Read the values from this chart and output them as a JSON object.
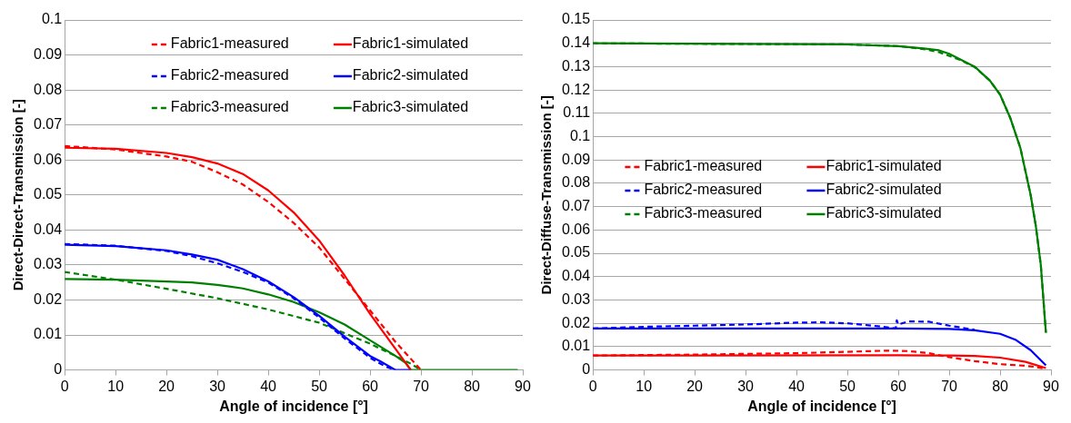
{
  "chart_data": [
    {
      "type": "line",
      "xlabel": "Angle of incidence [°]",
      "ylabel": "Direct-Direct-Transmission [-]",
      "xlim": [
        0,
        90
      ],
      "xticks": [
        0,
        10,
        20,
        30,
        40,
        50,
        60,
        70,
        80,
        90
      ],
      "ylim": [
        0,
        0.1
      ],
      "yticks": [
        0,
        0.01,
        0.02,
        0.03,
        0.04,
        0.05,
        0.06,
        0.07,
        0.08,
        0.09,
        0.1
      ],
      "grid": "y",
      "legend": "top",
      "marker": "none",
      "series": [
        {
          "name": "Fabric1-measured",
          "color": "#ff0000",
          "line_style": "dashed",
          "x": [
            0,
            10,
            20,
            25,
            30,
            35,
            40,
            45,
            50,
            55,
            60,
            65,
            70
          ],
          "values": [
            0.064,
            0.063,
            0.061,
            0.0595,
            0.0565,
            0.053,
            0.048,
            0.042,
            0.035,
            0.026,
            0.017,
            0.008,
            0
          ]
        },
        {
          "name": "Fabric1-simulated",
          "color": "#ff0000",
          "line_style": "solid",
          "x": [
            0,
            10,
            20,
            25,
            30,
            35,
            40,
            45,
            50,
            55,
            60,
            65,
            68
          ],
          "values": [
            0.0635,
            0.0632,
            0.062,
            0.0608,
            0.059,
            0.056,
            0.0513,
            0.045,
            0.037,
            0.027,
            0.016,
            0.006,
            0
          ]
        },
        {
          "name": "Fabric2-measured",
          "color": "#0000ff",
          "line_style": "dashed",
          "x": [
            0,
            10,
            20,
            25,
            30,
            35,
            40,
            45,
            50,
            55,
            60,
            63,
            65
          ],
          "values": [
            0.036,
            0.0355,
            0.034,
            0.0325,
            0.0305,
            0.028,
            0.025,
            0.0205,
            0.015,
            0.009,
            0.0035,
            0.001,
            0
          ]
        },
        {
          "name": "Fabric2-simulated",
          "color": "#0000ff",
          "line_style": "solid",
          "x": [
            0,
            10,
            20,
            25,
            30,
            35,
            40,
            45,
            50,
            55,
            60,
            62,
            65,
            68
          ],
          "values": [
            0.0358,
            0.0354,
            0.0342,
            0.033,
            0.0315,
            0.0288,
            0.0253,
            0.0208,
            0.0155,
            0.0095,
            0.004,
            0.0025,
            0,
            0
          ]
        },
        {
          "name": "Fabric3-measured",
          "color": "#008000",
          "line_style": "dashed",
          "x": [
            0,
            10,
            20,
            30,
            40,
            50,
            55,
            60,
            65,
            68,
            70
          ],
          "values": [
            0.028,
            0.0258,
            0.0232,
            0.0205,
            0.0173,
            0.0135,
            0.0105,
            0.0075,
            0.004,
            0.0018,
            0
          ]
        },
        {
          "name": "Fabric3-simulated",
          "color": "#008000",
          "line_style": "solid",
          "x": [
            0,
            10,
            20,
            25,
            30,
            35,
            40,
            45,
            50,
            55,
            60,
            65,
            67,
            68,
            89
          ],
          "values": [
            0.026,
            0.0258,
            0.0253,
            0.025,
            0.0243,
            0.0233,
            0.0216,
            0.0194,
            0.0165,
            0.013,
            0.0085,
            0.004,
            0.002,
            0,
            0
          ]
        }
      ]
    },
    {
      "type": "line",
      "xlabel": "Angle of incidence [°]",
      "ylabel": "Direct-Diffuse-Transmission [-]",
      "xlim": [
        0,
        90
      ],
      "xticks": [
        0,
        10,
        20,
        30,
        40,
        50,
        60,
        70,
        80,
        90
      ],
      "ylim": [
        0,
        0.15
      ],
      "yticks": [
        0,
        0.01,
        0.02,
        0.03,
        0.04,
        0.05,
        0.06,
        0.07,
        0.08,
        0.09,
        0.1,
        0.11,
        0.12,
        0.13,
        0.14,
        0.15
      ],
      "grid": "y",
      "legend": "left",
      "marker": "none",
      "series": [
        {
          "name": "Fabric1-measured",
          "color": "#ff0000",
          "line_style": "dashed",
          "x": [
            0,
            20,
            40,
            50,
            58,
            62,
            66,
            70,
            75,
            80,
            85,
            87,
            89
          ],
          "values": [
            0.0062,
            0.0066,
            0.0072,
            0.0078,
            0.0083,
            0.0081,
            0.0072,
            0.0055,
            0.0038,
            0.0025,
            0.0018,
            0.0013,
            0.0005
          ]
        },
        {
          "name": "Fabric1-simulated",
          "color": "#ff0000",
          "line_style": "solid",
          "x": [
            0,
            60,
            70,
            75,
            80,
            85,
            89
          ],
          "values": [
            0.0062,
            0.0063,
            0.0062,
            0.006,
            0.0053,
            0.0035,
            0.0008
          ]
        },
        {
          "name": "Fabric2-measured",
          "color": "#0000ff",
          "line_style": "dashed",
          "x": [
            0,
            10,
            20,
            30,
            40,
            45,
            50,
            55,
            59.5,
            59.7,
            60,
            62,
            66,
            70,
            75
          ],
          "values": [
            0.0178,
            0.0185,
            0.019,
            0.0195,
            0.0203,
            0.0204,
            0.02,
            0.019,
            0.0178,
            0.0213,
            0.0195,
            0.0208,
            0.0207,
            0.019,
            0.0172
          ]
        },
        {
          "name": "Fabric2-simulated",
          "color": "#0000ff",
          "line_style": "solid",
          "x": [
            0,
            60,
            70,
            75,
            80,
            83,
            86,
            89
          ],
          "values": [
            0.0178,
            0.0178,
            0.0176,
            0.017,
            0.0155,
            0.013,
            0.0085,
            0.002
          ]
        },
        {
          "name": "Fabric3-measured",
          "color": "#008000",
          "line_style": "dashed",
          "x": [
            0,
            50,
            60,
            65,
            68,
            72,
            75,
            78,
            80,
            82,
            84,
            86,
            87,
            88,
            89
          ],
          "values": [
            0.14,
            0.1395,
            0.1388,
            0.1375,
            0.1362,
            0.133,
            0.1298,
            0.124,
            0.118,
            0.108,
            0.095,
            0.075,
            0.062,
            0.045,
            0.016
          ]
        },
        {
          "name": "Fabric3-simulated",
          "color": "#008000",
          "line_style": "solid",
          "x": [
            0,
            50,
            60,
            65,
            68,
            70,
            75,
            78,
            80,
            82,
            84,
            86,
            87,
            88,
            89
          ],
          "values": [
            0.14,
            0.1395,
            0.1388,
            0.1378,
            0.137,
            0.1355,
            0.13,
            0.124,
            0.118,
            0.108,
            0.095,
            0.075,
            0.062,
            0.045,
            0.016
          ]
        }
      ]
    }
  ]
}
